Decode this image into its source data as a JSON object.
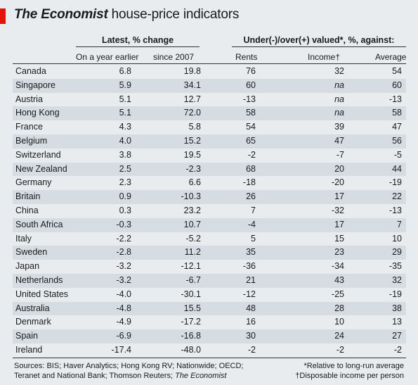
{
  "chart_data": {
    "type": "table",
    "title_brand": "The Economist",
    "title_rest": " house-price indicators",
    "group_headers": {
      "latest": "Latest, % change",
      "valued": "Under(-)/over(+) valued*, %, against:"
    },
    "columns": {
      "yoy": "On a year earlier",
      "since": "since 2007",
      "rents": "Rents",
      "income": "Income†",
      "average": "Average"
    },
    "rows": [
      {
        "country": "Canada",
        "yoy": "6.8",
        "since": "19.8",
        "rents": "76",
        "income": "32",
        "average": "54"
      },
      {
        "country": "Singapore",
        "yoy": "5.9",
        "since": "34.1",
        "rents": "60",
        "income": "na",
        "average": "60"
      },
      {
        "country": "Austria",
        "yoy": "5.1",
        "since": "12.7",
        "rents": "-13",
        "income": "na",
        "average": "-13"
      },
      {
        "country": "Hong Kong",
        "yoy": "5.1",
        "since": "72.0",
        "rents": "58",
        "income": "na",
        "average": "58"
      },
      {
        "country": "France",
        "yoy": "4.3",
        "since": "5.8",
        "rents": "54",
        "income": "39",
        "average": "47"
      },
      {
        "country": "Belgium",
        "yoy": "4.0",
        "since": "15.2",
        "rents": "65",
        "income": "47",
        "average": "56"
      },
      {
        "country": "Switzerland",
        "yoy": "3.8",
        "since": "19.5",
        "rents": "-2",
        "income": "-7",
        "average": "-5"
      },
      {
        "country": "New Zealand",
        "yoy": "2.5",
        "since": "-2.3",
        "rents": "68",
        "income": "20",
        "average": "44"
      },
      {
        "country": "Germany",
        "yoy": "2.3",
        "since": "6.6",
        "rents": "-18",
        "income": "-20",
        "average": "-19"
      },
      {
        "country": "Britain",
        "yoy": "0.9",
        "since": "-10.3",
        "rents": "26",
        "income": "17",
        "average": "22"
      },
      {
        "country": "China",
        "yoy": "0.3",
        "since": "23.2",
        "rents": "7",
        "income": "-32",
        "average": "-13"
      },
      {
        "country": "South Africa",
        "yoy": "-0.3",
        "since": "10.7",
        "rents": "-4",
        "income": "17",
        "average": "7"
      },
      {
        "country": "Italy",
        "yoy": "-2.2",
        "since": "-5.2",
        "rents": "5",
        "income": "15",
        "average": "10"
      },
      {
        "country": "Sweden",
        "yoy": "-2.8",
        "since": "11.2",
        "rents": "35",
        "income": "23",
        "average": "29"
      },
      {
        "country": "Japan",
        "yoy": "-3.2",
        "since": "-12.1",
        "rents": "-36",
        "income": "-34",
        "average": "-35"
      },
      {
        "country": "Netherlands",
        "yoy": "-3.2",
        "since": "-6.7",
        "rents": "21",
        "income": "43",
        "average": "32"
      },
      {
        "country": "United States",
        "yoy": "-4.0",
        "since": "-30.1",
        "rents": "-12",
        "income": "-25",
        "average": "-19"
      },
      {
        "country": "Australia",
        "yoy": "-4.8",
        "since": "15.5",
        "rents": "48",
        "income": "28",
        "average": "38"
      },
      {
        "country": "Denmark",
        "yoy": "-4.9",
        "since": "-17.2",
        "rents": "16",
        "income": "10",
        "average": "13"
      },
      {
        "country": "Spain",
        "yoy": "-6.9",
        "since": "-16.8",
        "rents": "30",
        "income": "24",
        "average": "27"
      },
      {
        "country": "Ireland",
        "yoy": "-17.4",
        "since": "-48.0",
        "rents": "-2",
        "income": "-2",
        "average": "-2"
      }
    ],
    "footer": {
      "sources_line1": "Sources: BIS; Haver Analytics; Hong Kong RV; Nationwide; OECD;",
      "sources_line2_prefix": "Teranet and National Bank; Thomson Reuters; ",
      "sources_line2_italic": "The Economist",
      "note1": "*Relative to long-run average",
      "note2": "†Disposable income per person"
    }
  },
  "colors": {
    "accent_red": "#e3120b",
    "background": "#e8ecef",
    "row_shade": "#d6dde2"
  }
}
